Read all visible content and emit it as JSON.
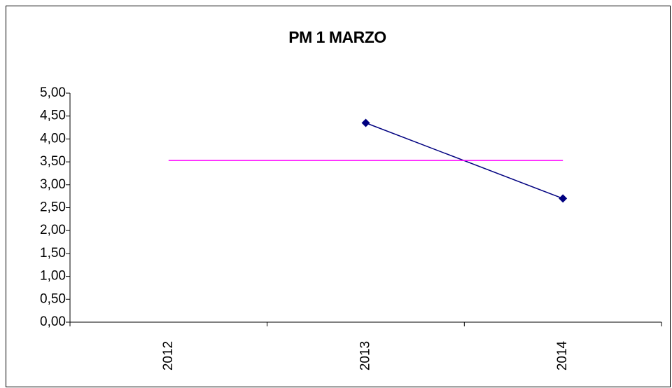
{
  "chart_data": {
    "type": "line",
    "title": "PM 1 MARZO",
    "categories": [
      "2012",
      "2013",
      "2014"
    ],
    "series": [
      {
        "color": "#000080",
        "marker": "diamond",
        "values": [
          null,
          4.35,
          2.7
        ]
      },
      {
        "color": "#ff00ff",
        "marker": "none",
        "values": [
          3.53,
          3.53,
          3.53
        ]
      }
    ],
    "ylim": [
      0,
      5
    ],
    "yticks": [
      {
        "value": 0,
        "label": "0,00"
      },
      {
        "value": 0.5,
        "label": "0,50"
      },
      {
        "value": 1,
        "label": "1,00"
      },
      {
        "value": 1.5,
        "label": "1,50"
      },
      {
        "value": 2,
        "label": "2,00"
      },
      {
        "value": 2.5,
        "label": "2,50"
      },
      {
        "value": 3,
        "label": "3,00"
      },
      {
        "value": 3.5,
        "label": "3,50"
      },
      {
        "value": 4,
        "label": "4,00"
      },
      {
        "value": 4.5,
        "label": "4,50"
      },
      {
        "value": 5,
        "label": "5,00"
      }
    ],
    "grid": false
  }
}
